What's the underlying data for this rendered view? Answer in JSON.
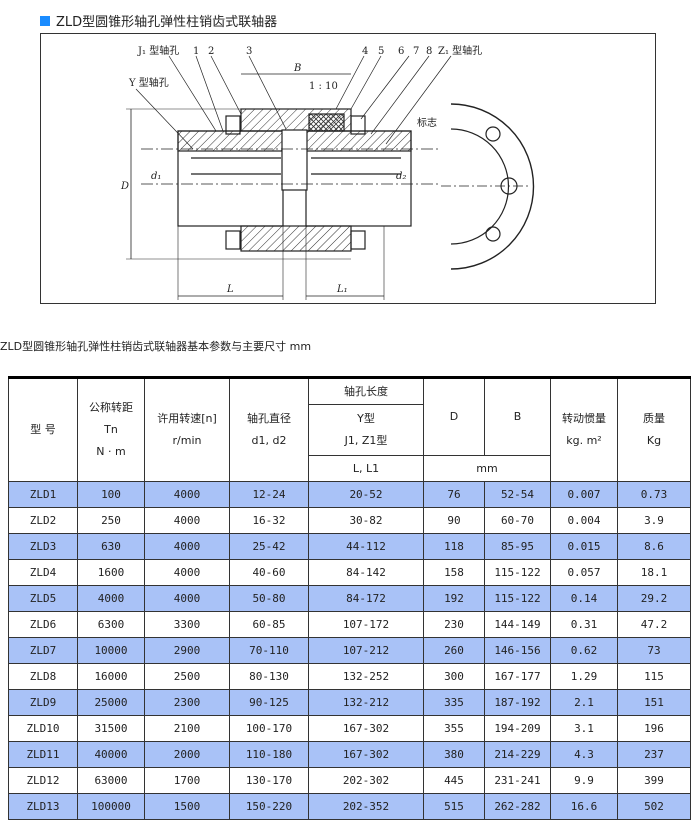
{
  "header": {
    "title": "ZLD型圆锥形轴孔弹性柱销齿式联轴器",
    "accent": "#1a8cff"
  },
  "drawing": {
    "labels": {
      "j1": "J₁ 型轴孔",
      "y": "Y 型轴孔",
      "n1": "1",
      "n2": "2",
      "n3": "3",
      "n4": "4",
      "n5": "5",
      "n6": "6",
      "n7": "7",
      "n8": "8",
      "z1": "Z₁ 型轴孔",
      "B": "B",
      "taper": "1 : 10",
      "D": "D",
      "d1": "d₁",
      "dz": "d₂",
      "L": "L",
      "L1": "L₁",
      "mark": "标志"
    }
  },
  "subtitle": "ZLD型圆锥形轴孔弹性柱销齿式联轴器基本参数与主要尺寸 mm",
  "table": {
    "headers": {
      "model": "型 号",
      "torque": [
        "公称转距",
        "Tn",
        "N · m"
      ],
      "speed": [
        "许用转速[n]",
        "r/min"
      ],
      "bore": [
        "轴孔直径",
        "d1, d2"
      ],
      "length": "轴孔长度",
      "length_type": [
        "Y型",
        "J1, Z1型"
      ],
      "length_sub": "L, L1",
      "D": "D",
      "B": "B",
      "unit": "mm",
      "inertia": [
        "转动惯量",
        "kg. m²"
      ],
      "mass": [
        "质量",
        "Kg"
      ]
    },
    "row_color": "#a9c2f7",
    "rows": [
      [
        "ZLD1",
        "100",
        "4000",
        "12-24",
        "20-52",
        "76",
        "52-54",
        "0.007",
        "0.73"
      ],
      [
        "ZLD2",
        "250",
        "4000",
        "16-32",
        "30-82",
        "90",
        "60-70",
        "0.004",
        "3.9"
      ],
      [
        "ZLD3",
        "630",
        "4000",
        "25-42",
        "44-112",
        "118",
        "85-95",
        "0.015",
        "8.6"
      ],
      [
        "ZLD4",
        "1600",
        "4000",
        "40-60",
        "84-142",
        "158",
        "115-122",
        "0.057",
        "18.1"
      ],
      [
        "ZLD5",
        "4000",
        "4000",
        "50-80",
        "84-172",
        "192",
        "115-122",
        "0.14",
        "29.2"
      ],
      [
        "ZLD6",
        "6300",
        "3300",
        "60-85",
        "107-172",
        "230",
        "144-149",
        "0.31",
        "47.2"
      ],
      [
        "ZLD7",
        "10000",
        "2900",
        "70-110",
        "107-212",
        "260",
        "146-156",
        "0.62",
        "73"
      ],
      [
        "ZLD8",
        "16000",
        "2500",
        "80-130",
        "132-252",
        "300",
        "167-177",
        "1.29",
        "115"
      ],
      [
        "ZLD9",
        "25000",
        "2300",
        "90-125",
        "132-212",
        "335",
        "187-192",
        "2.1",
        "151"
      ],
      [
        "ZLD10",
        "31500",
        "2100",
        "100-170",
        "167-302",
        "355",
        "194-209",
        "3.1",
        "196"
      ],
      [
        "ZLD11",
        "40000",
        "2000",
        "110-180",
        "167-302",
        "380",
        "214-229",
        "4.3",
        "237"
      ],
      [
        "ZLD12",
        "63000",
        "1700",
        "130-170",
        "202-302",
        "445",
        "231-241",
        "9.9",
        "399"
      ],
      [
        "ZLD13",
        "100000",
        "1500",
        "150-220",
        "202-352",
        "515",
        "262-282",
        "16.6",
        "502"
      ]
    ]
  }
}
